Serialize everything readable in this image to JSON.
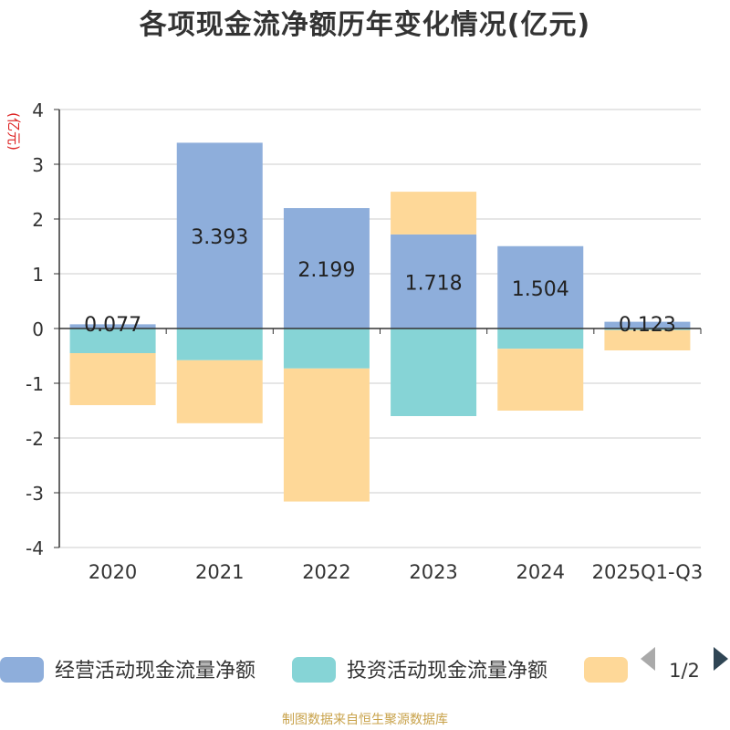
{
  "chart_data": {
    "type": "bar",
    "stacked": true,
    "title": "各项现金流净额历年变化情况(亿元)",
    "ylabel": "(亿元)",
    "xlabel": "",
    "ylim": [
      -4,
      4
    ],
    "yticks": [
      4,
      3,
      2,
      1,
      0,
      -1,
      -2,
      -3,
      -4
    ],
    "categories": [
      "2020",
      "2021",
      "2022",
      "2023",
      "2024",
      "2025Q1-Q3"
    ],
    "series": [
      {
        "name": "经营活动现金流量净额",
        "color": "#8eaedb",
        "values": [
          0.077,
          3.393,
          2.199,
          1.718,
          1.504,
          0.123
        ],
        "labels": [
          "0.077",
          "3.393",
          "2.199",
          "1.718",
          "1.504",
          "0.123"
        ]
      },
      {
        "name": "投资活动现金流量净额",
        "color": "#86d4d6",
        "values": [
          -0.45,
          -0.58,
          -0.73,
          -1.6,
          -0.37,
          -0.03
        ]
      },
      {
        "name": "",
        "color": "#fed898",
        "values": [
          -0.95,
          -1.15,
          -2.43,
          0.78,
          -1.13,
          -0.37
        ]
      }
    ],
    "legend": {
      "position": "bottom",
      "page": "1/2"
    },
    "grid": true
  },
  "source_note": "制图数据来自恒生聚源数据库"
}
